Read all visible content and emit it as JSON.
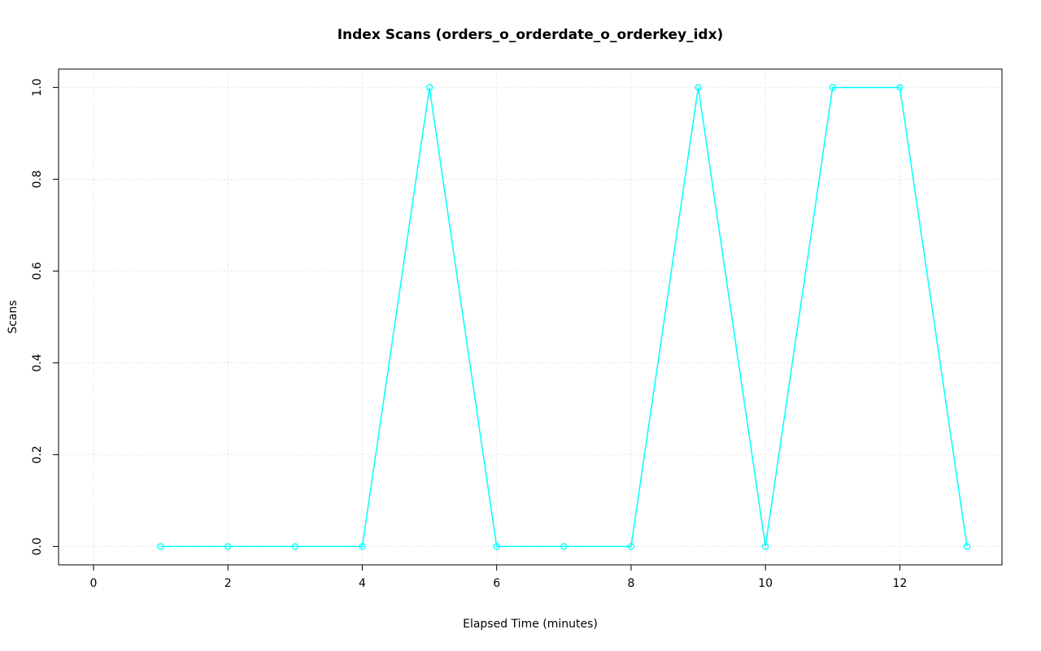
{
  "chart_data": {
    "type": "line",
    "title": "Index Scans (orders_o_orderdate_o_orderkey_idx)",
    "xlabel": "Elapsed Time (minutes)",
    "ylabel": "Scans",
    "series": [
      {
        "name": "index_scans",
        "x": [
          1,
          2,
          3,
          4,
          5,
          6,
          7,
          8,
          9,
          10,
          11,
          12,
          13
        ],
        "values": [
          0,
          0,
          0,
          0,
          1,
          0,
          0,
          0,
          1,
          0,
          1,
          1,
          0
        ],
        "line_color": "#00ffff",
        "marker": "open-circle"
      }
    ],
    "xlim": [
      -0.52,
      13.52
    ],
    "ylim": [
      -0.04,
      1.04
    ],
    "x_ticks": [
      0,
      2,
      4,
      6,
      8,
      10,
      12
    ],
    "x_tick_labels": [
      "0",
      "2",
      "4",
      "6",
      "8",
      "10",
      "12"
    ],
    "y_ticks": [
      0.0,
      0.2,
      0.4,
      0.6,
      0.8,
      1.0
    ],
    "y_tick_labels": [
      "0.0",
      "0.2",
      "0.4",
      "0.6",
      "0.8",
      "1.0"
    ],
    "grid": true,
    "legend": "none",
    "colors": {
      "background": "#ffffff",
      "grid": "#d3d3d3",
      "axis": "#000000",
      "series": "#00ffff"
    }
  }
}
